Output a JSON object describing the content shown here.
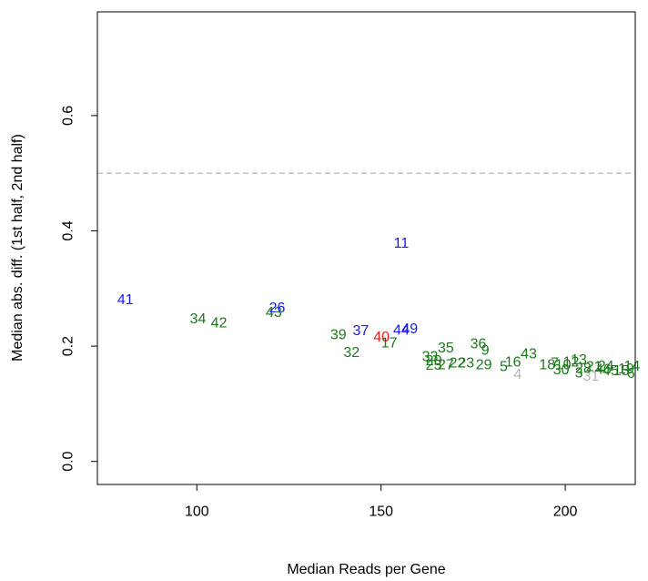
{
  "chart_data": {
    "type": "scatter",
    "title": "",
    "xlabel": "Median Reads per Gene",
    "ylabel": "Median abs. diff. (1st half, 2nd half)",
    "xlim": [
      73,
      219
    ],
    "ylim": [
      -0.04,
      0.78
    ],
    "x_ticks": [
      100,
      150,
      200
    ],
    "x_tick_labels": [
      "100",
      "150",
      "200"
    ],
    "y_ticks": [
      0.0,
      0.2,
      0.4,
      0.6
    ],
    "y_tick_labels": [
      "0.0",
      "0.2",
      "0.4",
      "0.6"
    ],
    "grid": false,
    "legend": "none",
    "reference_line": {
      "y": 0.5,
      "style": "dashed",
      "color": "#bbbbbb"
    },
    "colors": {
      "green": "#1a7a1a",
      "blue": "#1a1aee",
      "red": "#ee1a1a",
      "gray": "#b4b4b4"
    },
    "points": [
      {
        "label": "41",
        "x": 80.6,
        "y": 0.28,
        "color": "blue"
      },
      {
        "label": "34",
        "x": 100.3,
        "y": 0.247,
        "color": "green"
      },
      {
        "label": "42",
        "x": 106.0,
        "y": 0.24,
        "color": "green"
      },
      {
        "label": "43",
        "x": 120.9,
        "y": 0.258,
        "color": "green"
      },
      {
        "label": "26",
        "x": 121.8,
        "y": 0.266,
        "color": "blue"
      },
      {
        "label": "39",
        "x": 138.4,
        "y": 0.219,
        "color": "green"
      },
      {
        "label": "32",
        "x": 142.0,
        "y": 0.188,
        "color": "green"
      },
      {
        "label": "37",
        "x": 144.5,
        "y": 0.226,
        "color": "blue"
      },
      {
        "label": "40",
        "x": 150.1,
        "y": 0.215,
        "color": "red"
      },
      {
        "label": "17",
        "x": 152.2,
        "y": 0.205,
        "color": "green"
      },
      {
        "label": "44",
        "x": 155.5,
        "y": 0.227,
        "color": "blue"
      },
      {
        "label": "49",
        "x": 157.8,
        "y": 0.229,
        "color": "blue"
      },
      {
        "label": "11",
        "x": 155.5,
        "y": 0.378,
        "color": "blue"
      },
      {
        "label": "33",
        "x": 163.3,
        "y": 0.181,
        "color": "green"
      },
      {
        "label": "20",
        "x": 164.3,
        "y": 0.174,
        "color": "green"
      },
      {
        "label": "25",
        "x": 164.3,
        "y": 0.166,
        "color": "green"
      },
      {
        "label": "35",
        "x": 167.6,
        "y": 0.196,
        "color": "green"
      },
      {
        "label": "27",
        "x": 167.6,
        "y": 0.167,
        "color": "green"
      },
      {
        "label": "22",
        "x": 170.7,
        "y": 0.17,
        "color": "green"
      },
      {
        "label": "23",
        "x": 173.1,
        "y": 0.17,
        "color": "green"
      },
      {
        "label": "36",
        "x": 176.4,
        "y": 0.203,
        "color": "green"
      },
      {
        "label": "9",
        "x": 178.3,
        "y": 0.192,
        "color": "green"
      },
      {
        "label": "29",
        "x": 177.9,
        "y": 0.167,
        "color": "green"
      },
      {
        "label": "5",
        "x": 183.3,
        "y": 0.164,
        "color": "green"
      },
      {
        "label": "16",
        "x": 185.8,
        "y": 0.172,
        "color": "green"
      },
      {
        "label": "43",
        "x": 190.1,
        "y": 0.186,
        "color": "green"
      },
      {
        "label": "4",
        "x": 187.1,
        "y": 0.15,
        "color": "gray"
      },
      {
        "label": "18",
        "x": 195.1,
        "y": 0.167,
        "color": "green"
      },
      {
        "label": "7",
        "x": 197.2,
        "y": 0.17,
        "color": "green"
      },
      {
        "label": "10",
        "x": 199.4,
        "y": 0.167,
        "color": "green"
      },
      {
        "label": "12",
        "x": 201.6,
        "y": 0.172,
        "color": "green"
      },
      {
        "label": "13",
        "x": 203.7,
        "y": 0.176,
        "color": "green"
      },
      {
        "label": "30",
        "x": 198.9,
        "y": 0.158,
        "color": "green"
      },
      {
        "label": "3",
        "x": 203.7,
        "y": 0.153,
        "color": "green"
      },
      {
        "label": "31",
        "x": 207.0,
        "y": 0.147,
        "color": "gray"
      },
      {
        "label": "28",
        "x": 204.9,
        "y": 0.161,
        "color": "green"
      },
      {
        "label": "21",
        "x": 207.8,
        "y": 0.164,
        "color": "green"
      },
      {
        "label": "24",
        "x": 211.0,
        "y": 0.165,
        "color": "green"
      },
      {
        "label": "46",
        "x": 210.3,
        "y": 0.159,
        "color": "green"
      },
      {
        "label": "45",
        "x": 212.3,
        "y": 0.157,
        "color": "green"
      },
      {
        "label": "15",
        "x": 215.2,
        "y": 0.157,
        "color": "green"
      },
      {
        "label": "19",
        "x": 216.5,
        "y": 0.16,
        "color": "green"
      },
      {
        "label": "14",
        "x": 218.1,
        "y": 0.165,
        "color": "green"
      },
      {
        "label": "6",
        "x": 217.8,
        "y": 0.152,
        "color": "green"
      }
    ]
  }
}
